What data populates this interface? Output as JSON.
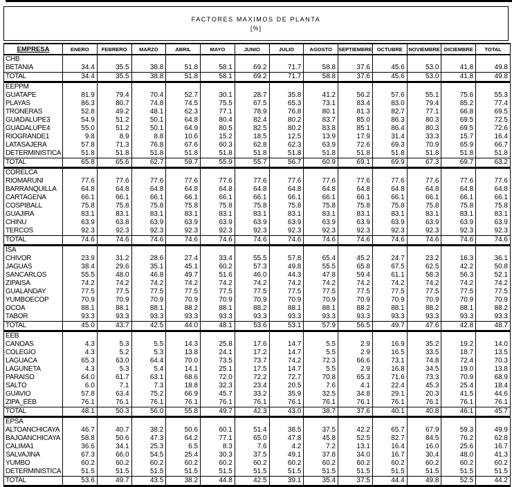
{
  "title": {
    "line1": "FACTORES MAXIMOS DE PLANTA",
    "line2": "[%]"
  },
  "columns": [
    "EMPRESA",
    "ENERO",
    "FEBRERO",
    "MARZO",
    "ABRIL",
    "MAYO",
    "JUNIO",
    "JULIO",
    "AGOSTO",
    "SEPTIEMBRE",
    "OCTUBRE",
    "NOVIEMBRE",
    "DICIEMBRE",
    "TOTAL"
  ],
  "groups": [
    {
      "name": "CHB",
      "rows": [
        {
          "label": "BETANIA",
          "values": [
            "34.4",
            "35.5",
            "38.8",
            "51.8",
            "58.1",
            "69.2",
            "71.7",
            "58.8",
            "37.6",
            "45.6",
            "53.0",
            "41.8",
            "49.8"
          ]
        },
        {
          "label": "TOTAL",
          "values": [
            "34.4",
            "35.5",
            "38.8",
            "51.8",
            "58.1",
            "69.2",
            "71.7",
            "58.8",
            "37.6",
            "45.6",
            "53.0",
            "41.8",
            "49.8"
          ]
        }
      ]
    },
    {
      "name": "EEPPM",
      "rows": [
        {
          "label": "GUATAPE",
          "values": [
            "81.9",
            "79.4",
            "70.4",
            "52.7",
            "30.1",
            "28.7",
            "35.8",
            "41.2",
            "56.2",
            "57.6",
            "55.1",
            "75.6",
            "55.3"
          ]
        },
        {
          "label": "PLAYAS",
          "values": [
            "86.3",
            "80.7",
            "74.8",
            "74.5",
            "75.5",
            "67.5",
            "65.3",
            "73.1",
            "83.4",
            "83.0",
            "79.4",
            "85.2",
            "77.4"
          ]
        },
        {
          "label": "TRONERAS",
          "values": [
            "52.8",
            "49.2",
            "48.1",
            "62.3",
            "77.1",
            "78.9",
            "76.8",
            "80.1",
            "81.3",
            "82.7",
            "77.1",
            "66.8",
            "69.5"
          ]
        },
        {
          "label": "GUADALUPE3",
          "values": [
            "54.9",
            "51.2",
            "50.1",
            "64.8",
            "80.4",
            "82.4",
            "80.2",
            "83.7",
            "85.0",
            "86.3",
            "80.3",
            "69.5",
            "72.5"
          ]
        },
        {
          "label": "GUADALUPE4",
          "values": [
            "55.0",
            "51.2",
            "50.1",
            "64.9",
            "80.5",
            "82.5",
            "80.2",
            "83.8",
            "85.1",
            "86.4",
            "80.3",
            "69.5",
            "72.6"
          ]
        },
        {
          "label": "RIOGRANDE1",
          "values": [
            "9.8",
            "8.9",
            "8.8",
            "10.6",
            "15.2",
            "18.5",
            "12.5",
            "13.9",
            "17.9",
            "31.4",
            "33.3",
            "15.7",
            "16.4"
          ]
        },
        {
          "label": "LATASAJERA",
          "values": [
            "57.8",
            "71.3",
            "76.8",
            "67.6",
            "60.3",
            "62.8",
            "62.3",
            "63.9",
            "72.6",
            "69.3",
            "70.9",
            "65.9",
            "66.7"
          ]
        },
        {
          "label": "DETERMINISTICA",
          "values": [
            "51.8",
            "51.8",
            "51.8",
            "51.8",
            "51.8",
            "51.8",
            "51.8",
            "51.8",
            "51.8",
            "51.8",
            "51.8",
            "51.8",
            "51.8"
          ]
        },
        {
          "label": "TOTAL",
          "values": [
            "65.8",
            "65.6",
            "62.7",
            "59.7",
            "55.9",
            "55.7",
            "56.7",
            "60.9",
            "69.1",
            "69.9",
            "67.3",
            "69.7",
            "63.2"
          ]
        }
      ]
    },
    {
      "name": "CORELCA",
      "rows": [
        {
          "label": "RIOMARUNI",
          "values": [
            "77.6",
            "77.6",
            "77.6",
            "77.6",
            "77.6",
            "77.6",
            "77.6",
            "77.6",
            "77.6",
            "77.6",
            "77.6",
            "77.6",
            "77.6"
          ]
        },
        {
          "label": "BARRANQUILLA",
          "values": [
            "64.8",
            "64.8",
            "64.8",
            "64.8",
            "64.8",
            "64.8",
            "64.8",
            "64.8",
            "64.8",
            "64.8",
            "64.8",
            "64.8",
            "64.8"
          ]
        },
        {
          "label": "CARTAGENA",
          "values": [
            "66.1",
            "66.1",
            "66.1",
            "66.1",
            "66.1",
            "66.1",
            "66.1",
            "66.1",
            "66.1",
            "66.1",
            "66.1",
            "66.1",
            "66.1"
          ]
        },
        {
          "label": "COSPIBALL",
          "values": [
            "75.8",
            "75.8",
            "75.8",
            "75.8",
            "75.8",
            "75.8",
            "75.8",
            "75.8",
            "75.8",
            "75.8",
            "75.8",
            "75.8",
            "75.8"
          ]
        },
        {
          "label": "GUAJIRA",
          "values": [
            "83.1",
            "83.1",
            "83.1",
            "83.1",
            "83.1",
            "83.1",
            "83.1",
            "83.1",
            "83.1",
            "83.1",
            "83.1",
            "83.1",
            "83.1"
          ]
        },
        {
          "label": "CHINU",
          "values": [
            "63.9",
            "63.8",
            "63.9",
            "63.9",
            "63.9",
            "63.9",
            "63.9",
            "63.9",
            "63.9",
            "63.9",
            "63.9",
            "63.9",
            "63.9"
          ]
        },
        {
          "label": "TERCOS",
          "values": [
            "92.3",
            "92.3",
            "92.3",
            "92.3",
            "92.3",
            "92.3",
            "92.3",
            "92.3",
            "92.3",
            "92.3",
            "92.3",
            "92.3",
            "92.3"
          ]
        },
        {
          "label": "TOTAL",
          "values": [
            "74.6",
            "74.6",
            "74.6",
            "74.6",
            "74.6",
            "74.6",
            "74.6",
            "74.6",
            "74.6",
            "74.6",
            "74.6",
            "74.6",
            "74.6"
          ]
        }
      ]
    },
    {
      "name": "ISA",
      "rows": [
        {
          "label": "CHIVOR",
          "values": [
            "23.9",
            "31.2",
            "28.6",
            "27.4",
            "33.4",
            "55.5",
            "57.8",
            "65.4",
            "45.2",
            "24.7",
            "23.2",
            "16.3",
            "36.1"
          ]
        },
        {
          "label": "JAGUAS",
          "values": [
            "38.4",
            "29.6",
            "35.1",
            "45.1",
            "60.2",
            "57.3",
            "49.8",
            "55.5",
            "65.8",
            "67.5",
            "62.5",
            "42.2",
            "50.8"
          ]
        },
        {
          "label": "SANCARLOS",
          "values": [
            "55.5",
            "48.0",
            "46.8",
            "49.7",
            "51.6",
            "46.0",
            "44.3",
            "47.8",
            "59.4",
            "61.1",
            "58.3",
            "56.3",
            "52.1"
          ]
        },
        {
          "label": "ZIPAISA",
          "values": [
            "74.2",
            "74.2",
            "74.2",
            "74.2",
            "74.2",
            "74.2",
            "74.2",
            "74.2",
            "74.2",
            "74.2",
            "74.2",
            "74.2",
            "74.2"
          ]
        },
        {
          "label": "GUALANDAY",
          "values": [
            "77.5",
            "77.5",
            "77.5",
            "77.5",
            "77.5",
            "77.5",
            "77.5",
            "77.5",
            "77.5",
            "77.5",
            "77.5",
            "77.5",
            "77.5"
          ]
        },
        {
          "label": "YUMBOECOP",
          "values": [
            "70.9",
            "70.9",
            "70.9",
            "70.9",
            "70.9",
            "70.9",
            "70.9",
            "70.9",
            "70.9",
            "70.9",
            "70.9",
            "70.9",
            "70.9"
          ]
        },
        {
          "label": "OCOA",
          "values": [
            "88.1",
            "88.1",
            "88.1",
            "88.2",
            "88.1",
            "88.2",
            "88.1",
            "88.1",
            "88.2",
            "88.1",
            "88.2",
            "88.1",
            "88.2"
          ]
        },
        {
          "label": "TABOR",
          "values": [
            "93.3",
            "93.3",
            "93.3",
            "93.3",
            "93.3",
            "93.3",
            "93.3",
            "93.3",
            "93.3",
            "93.3",
            "93.3",
            "93.3",
            "93.3"
          ]
        },
        {
          "label": "TOTAL",
          "values": [
            "45.0",
            "43.7",
            "42.5",
            "44.0",
            "48.1",
            "53.6",
            "53.1",
            "57.9",
            "56.5",
            "49.7",
            "47.6",
            "42.8",
            "48.7"
          ]
        }
      ]
    },
    {
      "name": "EEB",
      "rows": [
        {
          "label": "CANOAS",
          "values": [
            "4.3",
            "5.3",
            "5.5",
            "14.3",
            "25.8",
            "17.6",
            "14.7",
            "5.5",
            "2.9",
            "16.9",
            "35.2",
            "19.2",
            "14.0"
          ]
        },
        {
          "label": "COLEGIO",
          "values": [
            "4.3",
            "5.2",
            "5.3",
            "13.8",
            "24.1",
            "17.2",
            "14.7",
            "5.5",
            "2.9",
            "16.5",
            "33.5",
            "18.7",
            "13.5"
          ]
        },
        {
          "label": "LAGUACA",
          "values": [
            "65.3",
            "63.0",
            "64.4",
            "70.0",
            "73.5",
            "73.7",
            "74.2",
            "72.3",
            "66.6",
            "73.1",
            "74.8",
            "72.4",
            "70.3"
          ]
        },
        {
          "label": "LAGUNETA",
          "values": [
            "4.3",
            "5.3",
            "5.4",
            "14.1",
            "25.1",
            "17.5",
            "14.7",
            "5.5",
            "2.9",
            "16.8",
            "34.5",
            "19.0",
            "13.8"
          ]
        },
        {
          "label": "PARAISO",
          "values": [
            "64.0",
            "61.7",
            "63.1",
            "68.6",
            "72.0",
            "72.2",
            "72.7",
            "70.8",
            "65.3",
            "71.6",
            "73.3",
            "70.9",
            "68.9"
          ]
        },
        {
          "label": "SALTO",
          "values": [
            "6.0",
            "7.1",
            "7.3",
            "18.8",
            "32.3",
            "23.4",
            "20.5",
            "7.6",
            "4.1",
            "22.4",
            "45.3",
            "25.4",
            "18.4"
          ]
        },
        {
          "label": "GUAVIO",
          "values": [
            "57.8",
            "63.4",
            "75.2",
            "66.9",
            "45.7",
            "33.2",
            "35.9",
            "32.5",
            "34.8",
            "29.1",
            "20.3",
            "41.5",
            "44.6"
          ]
        },
        {
          "label": "ZIPA_EEB",
          "values": [
            "76.1",
            "76.1",
            "76.1",
            "76.1",
            "76.1",
            "76.1",
            "76.1",
            "76.1",
            "76.1",
            "76.1",
            "76.1",
            "76.1",
            "76.1"
          ]
        },
        {
          "label": "TOTAL",
          "values": [
            "48.1",
            "50.3",
            "56.0",
            "55.8",
            "49.7",
            "42.3",
            "43.0",
            "38.7",
            "37.6",
            "40.1",
            "40.8",
            "46.1",
            "45.7"
          ]
        }
      ]
    },
    {
      "name": "EPSA",
      "rows": [
        {
          "label": "ALTOANCHICAYA",
          "values": [
            "46.7",
            "40.7",
            "38.2",
            "50.6",
            "60.1",
            "51.4",
            "38.5",
            "37.5",
            "42.2",
            "65.7",
            "67.9",
            "59.3",
            "49.9"
          ]
        },
        {
          "label": "BAJOANCHICAYA",
          "values": [
            "58.8",
            "50.6",
            "47.3",
            "64.2",
            "77.1",
            "65.0",
            "47.8",
            "45.8",
            "52.5",
            "82.7",
            "84.5",
            "76.2",
            "62.8"
          ]
        },
        {
          "label": "CALIMA1",
          "values": [
            "36.6",
            "34.1",
            "25.3",
            "6.5",
            "8.3",
            "7.6",
            "4.2",
            "7.2",
            "13.1",
            "16.4",
            "16.0",
            "25.6",
            "16.7"
          ]
        },
        {
          "label": "SALVAJINA",
          "values": [
            "67.3",
            "66.0",
            "54.5",
            "25.4",
            "30.3",
            "37.5",
            "49.1",
            "37.8",
            "34.0",
            "16.7",
            "30.4",
            "48.0",
            "41.3"
          ]
        },
        {
          "label": "YUMBO",
          "values": [
            "60.2",
            "60.2",
            "60.2",
            "60.2",
            "60.2",
            "60.2",
            "60.2",
            "60.2",
            "60.2",
            "60.2",
            "60.2",
            "60.2",
            "60.2"
          ]
        },
        {
          "label": "DETERMINISTICA",
          "values": [
            "51.5",
            "51.5",
            "51.5",
            "51.5",
            "51.5",
            "51.5",
            "51.5",
            "51.5",
            "51.5",
            "51.5",
            "51.5",
            "51.5",
            "51.5"
          ]
        },
        {
          "label": "TOTAL",
          "values": [
            "53.6",
            "49.7",
            "43.5",
            "38.2",
            "44.8",
            "42.5",
            "39.1",
            "35.4",
            "37.5",
            "44.4",
            "49.8",
            "52.5",
            "44.2"
          ]
        }
      ]
    }
  ]
}
